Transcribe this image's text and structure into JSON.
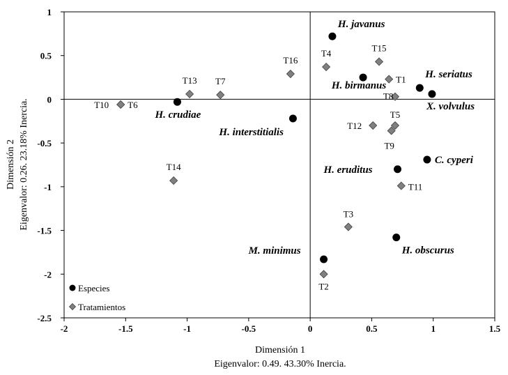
{
  "chart_data": {
    "type": "scatter",
    "xlabel": "Dimensión 1",
    "xlabel_sub": "Eigenvalor: 0.49. 43.30% Inercia.",
    "ylabel": "Dimensión 2",
    "ylabel_sub": "Eigenvalor: 0.26. 23.18% Inercia.",
    "xlim": [
      -2,
      1.5
    ],
    "ylim": [
      -2.5,
      1
    ],
    "xticks": [
      -2,
      -1.5,
      -1,
      -0.5,
      0,
      0.5,
      1,
      1.5
    ],
    "xtick_labels": [
      "-2",
      "-1.5",
      "-1",
      "-0.5",
      "0",
      "0.5",
      "1",
      "1.5"
    ],
    "yticks": [
      -2.5,
      -2,
      -1.5,
      -1,
      -0.5,
      0,
      0.5,
      1
    ],
    "ytick_labels": [
      "-2.5",
      "-2",
      "-1.5",
      "-1",
      "-0.5",
      "0",
      "0.5",
      "1"
    ],
    "grid": false,
    "legend_position": "bottom-left",
    "series": [
      {
        "name": "Especies",
        "marker": "circle",
        "color": "#000000",
        "points": [
          {
            "label": "H. javanus",
            "x": 0.18,
            "y": 0.72
          },
          {
            "label": "H. birmanus",
            "x": 0.43,
            "y": 0.25
          },
          {
            "label": "H. seriatus",
            "x": 0.89,
            "y": 0.13
          },
          {
            "label": "X. volvulus",
            "x": 0.99,
            "y": 0.06
          },
          {
            "label": "H. crudiae",
            "x": -1.08,
            "y": -0.03
          },
          {
            "label": "H. interstitialis",
            "x": -0.14,
            "y": -0.22
          },
          {
            "label": "C. cyperi",
            "x": 0.95,
            "y": -0.69
          },
          {
            "label": "H. eruditus",
            "x": 0.71,
            "y": -0.8
          },
          {
            "label": "H. obscurus",
            "x": 0.7,
            "y": -1.58
          },
          {
            "label": "M. minimus",
            "x": 0.11,
            "y": -1.83
          }
        ]
      },
      {
        "name": "Tratamientos",
        "marker": "diamond",
        "color": "#808080",
        "points": [
          {
            "label": "T15",
            "x": 0.56,
            "y": 0.43
          },
          {
            "label": "T4",
            "x": 0.13,
            "y": 0.37
          },
          {
            "label": "T16",
            "x": -0.16,
            "y": 0.29
          },
          {
            "label": "T1",
            "x": 0.64,
            "y": 0.23
          },
          {
            "label": "T8",
            "x": 0.69,
            "y": 0.03
          },
          {
            "label": "T13",
            "x": -0.98,
            "y": 0.06
          },
          {
            "label": "T7",
            "x": -0.73,
            "y": 0.05
          },
          {
            "label": "T10",
            "x": -1.54,
            "y": -0.06
          },
          {
            "label": "T6",
            "x": -1.54,
            "y": -0.06
          },
          {
            "label": "T5",
            "x": 0.69,
            "y": -0.3
          },
          {
            "label": "T12",
            "x": 0.51,
            "y": -0.3
          },
          {
            "label": "T9",
            "x": 0.66,
            "y": -0.36
          },
          {
            "label": "T14",
            "x": -1.11,
            "y": -0.93
          },
          {
            "label": "T11",
            "x": 0.74,
            "y": -0.99
          },
          {
            "label": "T3",
            "x": 0.31,
            "y": -1.46
          },
          {
            "label": "T2",
            "x": 0.11,
            "y": -2.0
          }
        ]
      }
    ]
  }
}
